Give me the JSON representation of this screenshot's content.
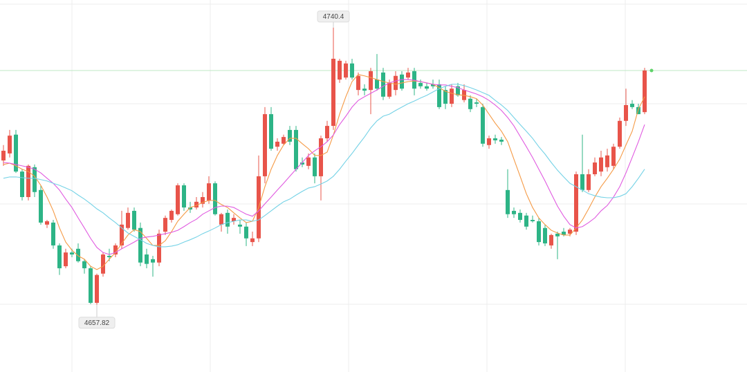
{
  "chart_data": {
    "type": "candlestick",
    "ylim": [
      4637.8,
      4748.6
    ],
    "up_color": "#e8544a",
    "down_color": "#2db486",
    "open": [
      4700.8,
      4702.9,
      4708.5,
      4697.5,
      4689.9,
      4698.8,
      4692.0,
      4681.7,
      4682.3,
      4675.5,
      4669.3,
      4673.4,
      4674.5,
      4670.8,
      4668.7,
      4658.4,
      4667.1,
      4672.4,
      4672.8,
      4675.5,
      4680.7,
      4685.8,
      4680.7,
      4672.8,
      4671.4,
      4670.4,
      4679.6,
      4683.1,
      4684.8,
      4693.4,
      4686.8,
      4686.8,
      4687.9,
      4688.9,
      4694.0,
      4681.7,
      4685.2,
      4682.7,
      4681.7,
      4681.1,
      4676.5,
      4677.6,
      4696.1,
      4714.6,
      4704.9,
      4705.8,
      4709.9,
      4709.9,
      4700.2,
      4699.2,
      4701.7,
      4696.1,
      4707.4,
      4711.1,
      4724.9,
      4725.5,
      4729.7,
      4721.8,
      4722.2,
      4721.8,
      4724.9,
      4727.0,
      4719.8,
      4721.8,
      4726.4,
      4725.5,
      4727.4,
      4723.9,
      4722.9,
      4723.5,
      4723.5,
      4721.8,
      4717.7,
      4722.9,
      4718.8,
      4719.2,
      4718.1,
      4716.7,
      4705.4,
      4707.4,
      4707.0,
      4692.0,
      4685.8,
      4685.2,
      4684.4,
      4683.1,
      4682.7,
      4680.7,
      4675.5,
      4679.0,
      4679.6,
      4679.0,
      4679.6,
      4696.7,
      4692.0,
      4696.7,
      4697.5,
      4698.8,
      4699.2,
      4704.9,
      4712.6,
      4717.7,
      4716.7,
      4715.2
    ],
    "high": [
      4705.4,
      4709.9,
      4709.9,
      4698.2,
      4699.6,
      4699.6,
      4693.4,
      4683.1,
      4683.1,
      4676.1,
      4674.5,
      4674.5,
      4676.1,
      4671.4,
      4669.3,
      4667.1,
      4673.4,
      4674.5,
      4676.1,
      4685.8,
      4686.8,
      4686.8,
      4682.3,
      4674.5,
      4672.4,
      4680.2,
      4684.4,
      4686.2,
      4694.0,
      4694.0,
      4688.5,
      4689.9,
      4691.4,
      4696.1,
      4694.6,
      4685.2,
      4686.2,
      4684.8,
      4683.1,
      4682.3,
      4679.6,
      4702.3,
      4716.7,
      4716.7,
      4707.4,
      4708.5,
      4711.1,
      4711.1,
      4701.7,
      4702.9,
      4702.9,
      4708.2,
      4712.6,
      4740.4,
      4731.1,
      4730.5,
      4731.1,
      4727.0,
      4723.5,
      4728.4,
      4732.5,
      4728.4,
      4724.9,
      4727.4,
      4727.4,
      4728.4,
      4728.4,
      4724.9,
      4723.9,
      4724.9,
      4724.9,
      4722.9,
      4723.5,
      4723.9,
      4723.5,
      4720.2,
      4719.2,
      4717.7,
      4708.2,
      4708.5,
      4707.8,
      4698.2,
      4686.8,
      4686.2,
      4685.2,
      4684.4,
      4683.7,
      4681.7,
      4679.0,
      4679.6,
      4680.7,
      4680.7,
      4697.5,
      4708.5,
      4698.2,
      4701.7,
      4703.7,
      4704.3,
      4705.8,
      4713.6,
      4722.2,
      4718.8,
      4717.7,
      4728.4
    ],
    "low": [
      4699.2,
      4701.7,
      4697.1,
      4688.9,
      4688.9,
      4689.9,
      4681.7,
      4680.7,
      4674.5,
      4666.7,
      4668.7,
      4672.0,
      4670.4,
      4667.1,
      4658.0,
      4657.82,
      4666.2,
      4670.8,
      4672.0,
      4674.5,
      4680.2,
      4679.6,
      4669.3,
      4668.7,
      4666.2,
      4669.3,
      4678.6,
      4682.3,
      4684.4,
      4685.8,
      4685.2,
      4686.2,
      4686.8,
      4687.9,
      4684.4,
      4679.6,
      4679.0,
      4681.7,
      4679.0,
      4675.3,
      4675.3,
      4676.5,
      4694.0,
      4703.7,
      4703.7,
      4705.4,
      4705.4,
      4697.5,
      4698.8,
      4698.2,
      4694.0,
      4688.9,
      4706.4,
      4709.9,
      4723.9,
      4724.9,
      4724.9,
      4720.2,
      4720.2,
      4714.6,
      4721.6,
      4718.8,
      4719.2,
      4720.2,
      4721.6,
      4724.9,
      4720.2,
      4722.2,
      4721.6,
      4722.2,
      4716.1,
      4716.1,
      4716.7,
      4719.8,
      4718.1,
      4715.2,
      4716.7,
      4704.9,
      4704.3,
      4705.8,
      4705.4,
      4683.7,
      4683.7,
      4682.3,
      4680.2,
      4682.3,
      4675.5,
      4675.3,
      4674.5,
      4671.4,
      4678.2,
      4678.2,
      4678.6,
      4691.4,
      4691.4,
      4696.1,
      4696.1,
      4697.5,
      4698.2,
      4704.3,
      4711.1,
      4716.1,
      4714.6,
      4714.6
    ],
    "close": [
      4703.7,
      4708.2,
      4697.5,
      4689.9,
      4699.2,
      4691.4,
      4682.3,
      4682.7,
      4675.5,
      4668.7,
      4673.4,
      4672.8,
      4670.8,
      4668.7,
      4658.4,
      4666.7,
      4672.8,
      4672.0,
      4675.5,
      4681.7,
      4685.2,
      4680.2,
      4670.4,
      4670.0,
      4670.4,
      4679.0,
      4683.7,
      4685.8,
      4693.4,
      4686.8,
      4686.2,
      4688.5,
      4689.9,
      4694.0,
      4684.8,
      4684.8,
      4681.1,
      4683.7,
      4681.1,
      4677.6,
      4677.6,
      4696.1,
      4714.6,
      4704.3,
      4706.4,
      4707.8,
      4706.4,
      4698.2,
      4699.6,
      4701.7,
      4696.1,
      4707.4,
      4711.1,
      4731.1,
      4730.5,
      4729.7,
      4725.5,
      4726.0,
      4721.6,
      4727.4,
      4722.2,
      4719.8,
      4723.9,
      4726.0,
      4722.2,
      4727.0,
      4722.2,
      4722.9,
      4722.2,
      4722.9,
      4716.7,
      4717.7,
      4722.2,
      4720.2,
      4721.8,
      4716.1,
      4717.7,
      4705.8,
      4707.4,
      4706.8,
      4706.4,
      4684.8,
      4684.8,
      4683.1,
      4681.1,
      4682.7,
      4676.5,
      4676.1,
      4678.6,
      4678.2,
      4678.6,
      4680.2,
      4696.7,
      4692.0,
      4696.7,
      4700.2,
      4701.7,
      4702.3,
      4704.9,
      4712.6,
      4717.3,
      4716.7,
      4714.6,
      4727.6
    ],
    "lines": [
      {
        "color": "#f59a45",
        "values": [
          4699.6,
          4700.0,
          4699.2,
          4698.2,
          4697.5,
          4696.1,
          4693.4,
          4689.9,
          4685.8,
          4680.7,
          4676.5,
          4674.1,
          4672.4,
          4671.4,
          4669.3,
          4668.3,
          4669.3,
          4671.4,
          4673.4,
          4676.1,
          4678.6,
          4680.2,
          4679.6,
          4677.6,
          4675.5,
          4675.5,
          4676.9,
          4679.6,
          4682.7,
          4684.8,
          4686.8,
          4687.4,
          4688.3,
          4688.9,
          4688.9,
          4687.7,
          4686.8,
          4685.2,
          4683.7,
          4682.3,
          4682.7,
          4686.8,
          4693.0,
          4698.2,
          4702.3,
          4705.4,
          4707.4,
          4707.4,
          4705.8,
          4704.3,
          4702.3,
          4702.3,
          4703.3,
          4708.4,
          4714.6,
          4719.8,
          4724.3,
          4726.4,
          4726.0,
          4725.5,
          4724.9,
          4724.3,
          4723.9,
          4723.5,
          4723.9,
          4724.3,
          4724.5,
          4724.3,
          4723.9,
          4723.5,
          4722.5,
          4721.4,
          4720.8,
          4720.4,
          4720.2,
          4719.8,
          4719.2,
          4717.3,
          4714.6,
          4711.9,
          4709.5,
          4706.4,
          4701.2,
          4696.1,
          4690.9,
          4686.8,
          4683.7,
          4681.7,
          4680.0,
          4679.2,
          4678.6,
          4678.6,
          4680.7,
          4683.1,
          4686.4,
          4689.9,
          4693.0,
          4695.5,
          4698.2,
          4701.2,
          4705.4,
          4709.5,
          4716.1,
          4719.8
        ]
      },
      {
        "color": "#e05ae0",
        "values": [
          4700.2,
          4700.0,
          4699.6,
          4699.2,
          4698.8,
          4698.2,
          4697.1,
          4695.5,
          4694.0,
          4692.0,
          4689.3,
          4686.8,
          4683.7,
          4680.7,
          4677.6,
          4674.9,
          4673.4,
          4672.8,
          4673.4,
          4674.5,
          4675.5,
          4676.5,
          4677.6,
          4678.0,
          4678.2,
          4678.6,
          4679.0,
          4679.4,
          4680.0,
          4681.1,
          4682.3,
          4683.3,
          4684.8,
          4685.8,
          4686.8,
          4687.2,
          4687.2,
          4686.8,
          4685.8,
          4684.8,
          4684.2,
          4685.8,
          4687.9,
          4689.9,
          4692.0,
          4694.0,
          4696.1,
          4698.2,
          4700.2,
          4702.3,
          4703.7,
          4704.9,
          4706.4,
          4708.4,
          4711.5,
          4714.0,
          4716.7,
          4718.7,
          4719.8,
          4720.8,
          4721.8,
          4722.9,
          4723.9,
          4724.5,
          4724.9,
          4724.9,
          4724.7,
          4724.3,
          4723.9,
          4723.5,
          4723.3,
          4723.3,
          4722.9,
          4722.5,
          4721.8,
          4721.2,
          4720.6,
          4719.8,
          4718.7,
          4717.3,
          4715.7,
          4713.6,
          4711.1,
          4708.0,
          4704.9,
          4701.7,
          4698.2,
          4694.7,
          4690.9,
          4687.2,
          4684.2,
          4681.7,
          4680.7,
          4681.1,
          4682.3,
          4683.7,
          4685.8,
          4687.4,
          4689.9,
          4693.0,
          4697.1,
          4701.7,
          4706.4,
          4711.5
        ]
      },
      {
        "color": "#74d2e6",
        "values": [
          4695.5,
          4695.9,
          4695.9,
          4695.7,
          4695.5,
          4695.5,
          4695.1,
          4694.7,
          4694.0,
          4693.4,
          4692.6,
          4691.8,
          4690.5,
          4689.3,
          4687.9,
          4686.4,
          4685.2,
          4683.7,
          4682.3,
          4680.7,
          4679.2,
          4678.2,
          4677.2,
          4676.1,
          4675.5,
          4675.1,
          4675.1,
          4675.3,
          4675.7,
          4676.5,
          4677.2,
          4678.0,
          4679.0,
          4679.8,
          4680.7,
          4681.7,
          4682.3,
          4682.7,
          4683.1,
          4683.1,
          4682.7,
          4683.1,
          4684.4,
          4685.8,
          4687.2,
          4688.5,
          4689.3,
          4690.5,
          4691.6,
          4692.6,
          4693.0,
          4693.8,
          4694.7,
          4696.1,
          4698.2,
          4700.6,
          4702.9,
          4705.4,
          4707.8,
          4710.5,
          4712.6,
          4714.0,
          4714.6,
          4715.7,
          4716.7,
          4717.7,
          4718.5,
          4719.4,
          4720.2,
          4721.2,
          4722.2,
          4722.9,
          4723.5,
          4723.5,
          4723.1,
          4722.5,
          4721.8,
          4721.0,
          4720.2,
          4718.7,
          4717.3,
          4715.7,
          4713.6,
          4711.5,
          4709.5,
          4707.4,
          4704.9,
          4702.7,
          4700.2,
          4697.9,
          4695.9,
          4694.0,
          4693.0,
          4692.0,
          4690.9,
          4690.3,
          4689.9,
          4689.7,
          4689.7,
          4690.1,
          4690.9,
          4693.0,
          4695.5,
          4698.2
        ]
      }
    ],
    "annotations": [
      {
        "index": 53,
        "label": "4740.4",
        "value": 4740.4
      },
      {
        "index": 15,
        "label": "4657.82",
        "value": 4657.82
      }
    ]
  }
}
